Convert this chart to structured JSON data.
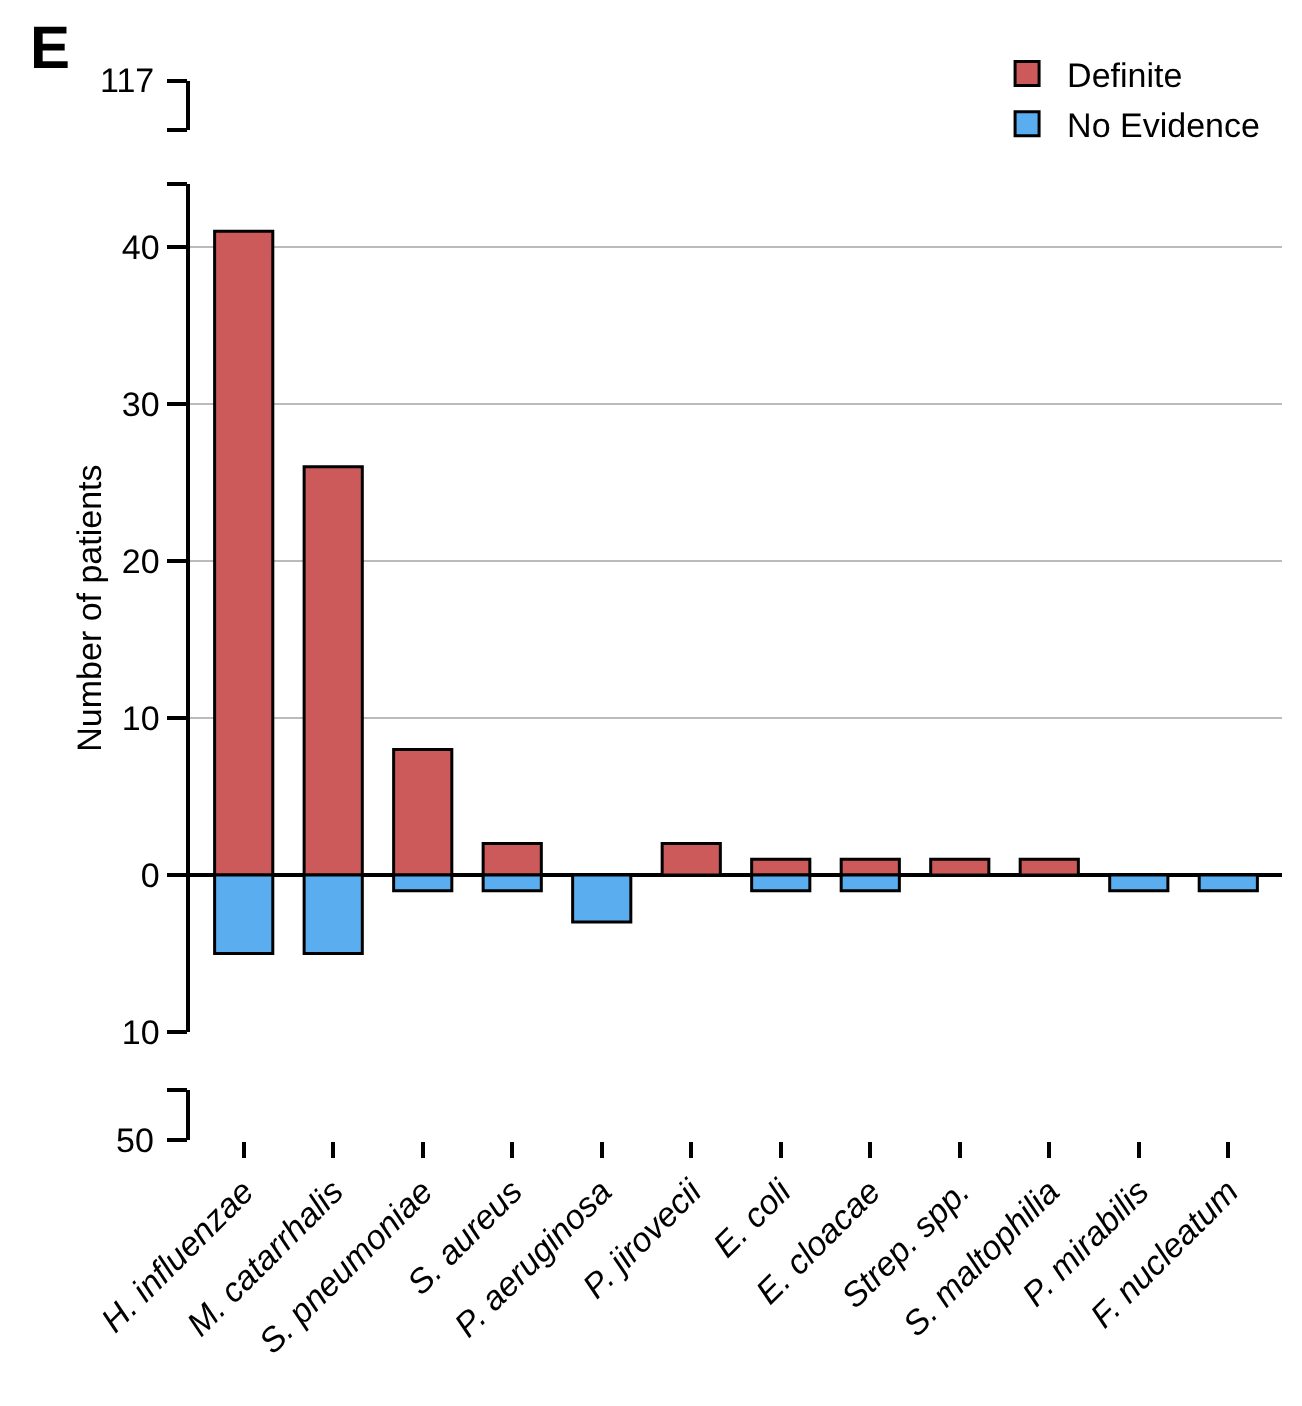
{
  "chart_data": {
    "type": "bar",
    "title": "E",
    "ylabel": "Number of patients",
    "categories": [
      "H. influenzae",
      "M. catarrhalis",
      "S. pneumoniae",
      "S. aureus",
      "P. aeruginosa",
      "P. jirovecii",
      "E. coli",
      "E. cloacae",
      "Strep. spp.",
      "S. maltophilia",
      "P. mirabilis",
      "F. nucleatum"
    ],
    "series": [
      {
        "name": "Definite",
        "color": "#cd5a5a",
        "values": [
          41,
          26,
          8,
          2,
          null,
          2,
          1,
          1,
          1,
          1,
          null,
          null
        ]
      },
      {
        "name": "No Evidence",
        "color": "#5aaeef",
        "values": [
          -5,
          -5,
          -1,
          -1,
          -3,
          null,
          -1,
          -1,
          null,
          null,
          -1,
          -1
        ]
      }
    ],
    "stacked": true,
    "ylim": [
      -10,
      44
    ],
    "yticks": [
      {
        "value": -10,
        "label": "10"
      },
      0,
      10,
      20,
      30,
      40,
      {
        "value": 44,
        "label": null
      }
    ],
    "annotations": [
      "117",
      "50"
    ],
    "grid": "y",
    "legend": "top right"
  }
}
